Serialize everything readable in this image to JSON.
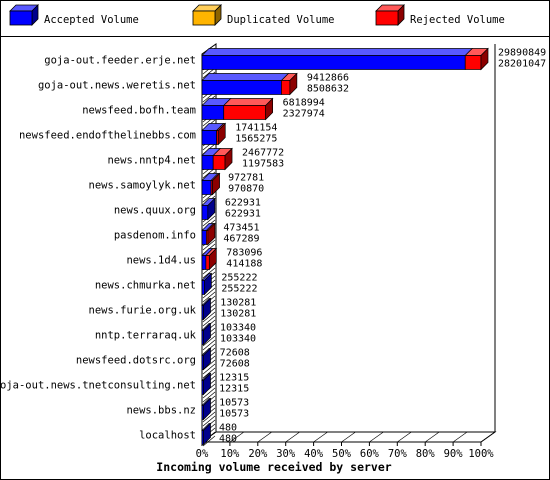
{
  "chart_data": {
    "type": "bar",
    "orientation": "horizontal",
    "stacked": true,
    "xlabel": "Incoming volume received by server",
    "x_ticks": [
      "0%",
      "10%",
      "20%",
      "30%",
      "40%",
      "50%",
      "60%",
      "70%",
      "80%",
      "90%",
      "100%"
    ],
    "xlim": [
      0,
      100
    ],
    "legend_position": "top",
    "series": [
      {
        "name": "Accepted Volume",
        "color": "#0000ff"
      },
      {
        "name": "Duplicated Volume",
        "color": "#ffb400"
      },
      {
        "name": "Rejected Volume",
        "color": "#ff0000"
      }
    ],
    "rows": [
      {
        "server": "goja-out.feeder.erje.net",
        "total": 29890849,
        "accepted": 28201047,
        "duplicated": 0,
        "rejected": 1689802
      },
      {
        "server": "goja-out.news.weretis.net",
        "total": 9412866,
        "accepted": 8508632,
        "duplicated": 0,
        "rejected": 904234
      },
      {
        "server": "newsfeed.bofh.team",
        "total": 6818994,
        "accepted": 2327974,
        "duplicated": 0,
        "rejected": 4491020
      },
      {
        "server": "newsfeed.endofthelinebbs.com",
        "total": 1741154,
        "accepted": 1565275,
        "duplicated": 0,
        "rejected": 175879
      },
      {
        "server": "news.nntp4.net",
        "total": 2467772,
        "accepted": 1197583,
        "duplicated": 0,
        "rejected": 1270189
      },
      {
        "server": "news.samoylyk.net",
        "total": 972781,
        "accepted": 970870,
        "duplicated": 0,
        "rejected": 1911
      },
      {
        "server": "news.quux.org",
        "total": 622931,
        "accepted": 622931,
        "duplicated": 0,
        "rejected": 0
      },
      {
        "server": "pasdenom.info",
        "total": 473451,
        "accepted": 467289,
        "duplicated": 0,
        "rejected": 6162
      },
      {
        "server": "news.1d4.us",
        "total": 783096,
        "accepted": 414188,
        "duplicated": 0,
        "rejected": 368908
      },
      {
        "server": "news.chmurka.net",
        "total": 255222,
        "accepted": 255222,
        "duplicated": 0,
        "rejected": 0
      },
      {
        "server": "news.furie.org.uk",
        "total": 130281,
        "accepted": 130281,
        "duplicated": 0,
        "rejected": 0
      },
      {
        "server": "nntp.terraraq.uk",
        "total": 103340,
        "accepted": 103340,
        "duplicated": 0,
        "rejected": 0
      },
      {
        "server": "newsfeed.dotsrc.org",
        "total": 72608,
        "accepted": 72608,
        "duplicated": 0,
        "rejected": 0
      },
      {
        "server": "goja-out.news.tnetconsulting.net",
        "total": 12315,
        "accepted": 12315,
        "duplicated": 0,
        "rejected": 0
      },
      {
        "server": "news.bbs.nz",
        "total": 10573,
        "accepted": 10573,
        "duplicated": 0,
        "rejected": 0
      },
      {
        "server": "localhost",
        "total": 480,
        "accepted": 480,
        "duplicated": 0,
        "rejected": 0
      }
    ]
  }
}
